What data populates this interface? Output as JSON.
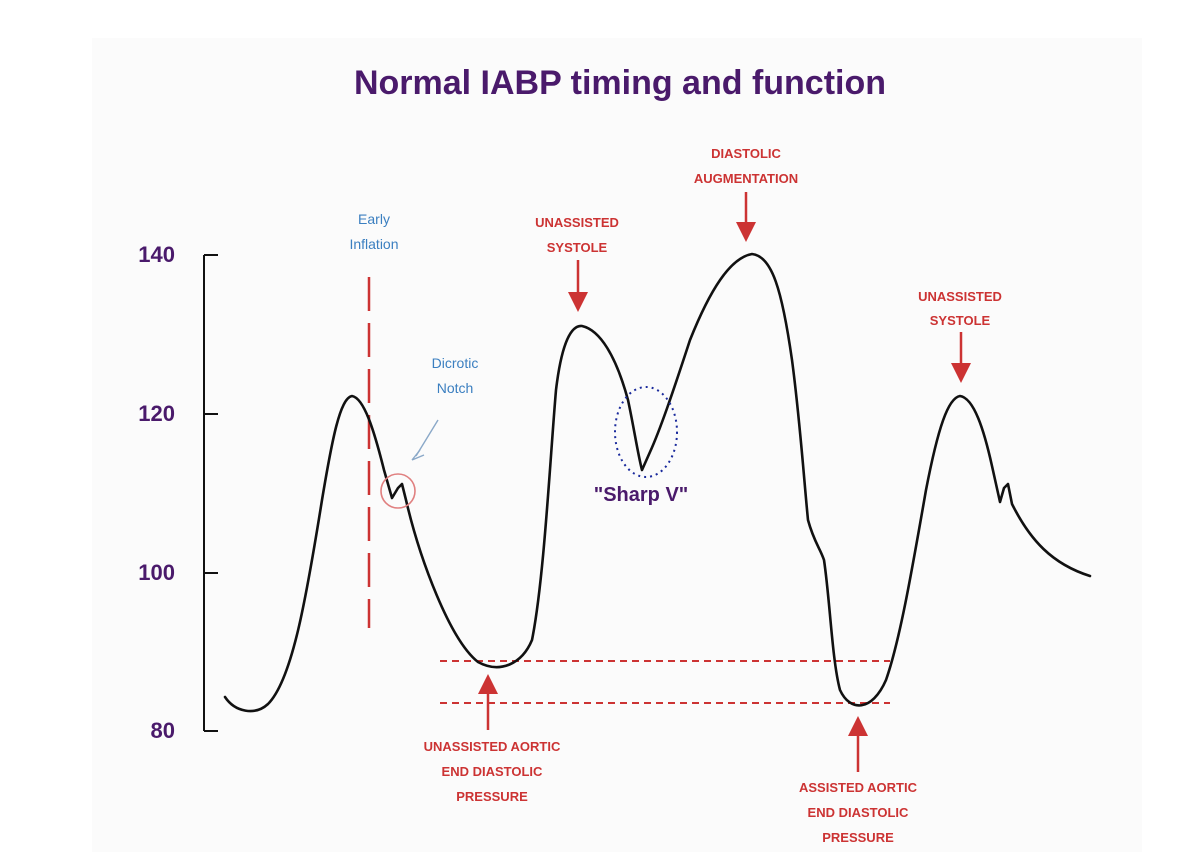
{
  "title": "Normal IABP timing and function",
  "colors": {
    "title": "#4a1a6b",
    "axis_labels": "#4a1a6b",
    "waveform": "#111111",
    "annotation_red": "#cc3333",
    "annotation_blue": "#3b7fc0",
    "dotted_circle": "#1a2a9c"
  },
  "y_axis": {
    "ticks": [
      "140",
      "120",
      "100",
      "80"
    ],
    "range": [
      80,
      140
    ]
  },
  "annotations": {
    "early_inflation": [
      "Early",
      "Inflation"
    ],
    "dicrotic_notch": [
      "Dicrotic",
      "Notch"
    ],
    "unassisted_systole_1": [
      "UNASSISTED",
      "SYSTOLE"
    ],
    "diastolic_augmentation": [
      "DIASTOLIC",
      "AUGMENTATION"
    ],
    "unassisted_systole_2": [
      "UNASSISTED",
      "SYSTOLE"
    ],
    "sharp_v": "\"Sharp V\"",
    "unassisted_aortic_edp": [
      "UNASSISTED AORTIC",
      "END DIASTOLIC",
      "PRESSURE"
    ],
    "assisted_aortic_edp": [
      "ASSISTED AORTIC",
      "END DIASTOLIC",
      "PRESSURE"
    ]
  }
}
